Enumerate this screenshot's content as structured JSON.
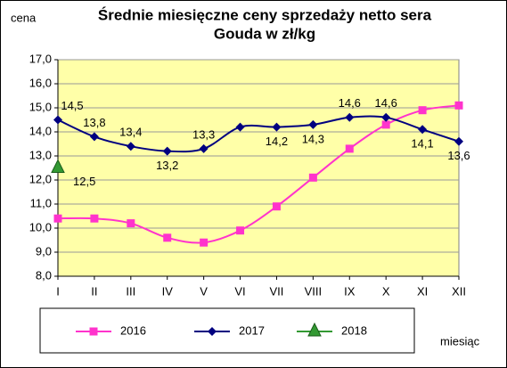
{
  "chart_data": {
    "type": "line",
    "title": [
      "Średnie miesięczne ceny sprzedaży netto sera",
      "Gouda w zł/kg"
    ],
    "y_label": "cena",
    "x_label": "miesiąc",
    "categories": [
      "I",
      "II",
      "III",
      "IV",
      "V",
      "VI",
      "VII",
      "VIII",
      "IX",
      "X",
      "XI",
      "XII"
    ],
    "series": [
      {
        "name": "2016",
        "color": "#ff33cc",
        "marker": "square",
        "values": [
          10.4,
          10.4,
          10.2,
          9.6,
          9.4,
          9.9,
          10.9,
          12.1,
          13.3,
          14.3,
          14.9,
          15.1
        ]
      },
      {
        "name": "2017",
        "color": "#000080",
        "marker": "diamond",
        "values": [
          14.5,
          13.8,
          13.4,
          13.2,
          13.3,
          14.2,
          14.2,
          14.3,
          14.6,
          14.6,
          14.1,
          13.6
        ],
        "value_labels": [
          "14,5",
          "13,8",
          "13,4",
          "13,2",
          "13,3",
          null,
          "14,2",
          "14,3",
          "14,6",
          "14,6",
          "14,1",
          "13,6"
        ]
      },
      {
        "name": "2018",
        "color": "#339933",
        "marker": "triangle",
        "values": [
          12.5,
          null,
          null,
          null,
          null,
          null,
          null,
          null,
          null,
          null,
          null,
          null
        ],
        "value_labels": [
          "12,5",
          null,
          null,
          null,
          null,
          null,
          null,
          null,
          null,
          null,
          null,
          null
        ]
      }
    ],
    "ylim": [
      8,
      17
    ],
    "yticks": [
      {
        "value": 8,
        "label": "8,0"
      },
      {
        "value": 9,
        "label": "9,0"
      },
      {
        "value": 10,
        "label": "10,0"
      },
      {
        "value": 11,
        "label": "11,0"
      },
      {
        "value": 12,
        "label": "12,0"
      },
      {
        "value": 13,
        "label": "13,0"
      },
      {
        "value": 14,
        "label": "14,0"
      },
      {
        "value": 15,
        "label": "15,0"
      },
      {
        "value": 16,
        "label": "16,0"
      },
      {
        "value": 17,
        "label": "17,0"
      }
    ],
    "grid": true,
    "plot_background": "#ffffa8",
    "legend": "bottom"
  }
}
